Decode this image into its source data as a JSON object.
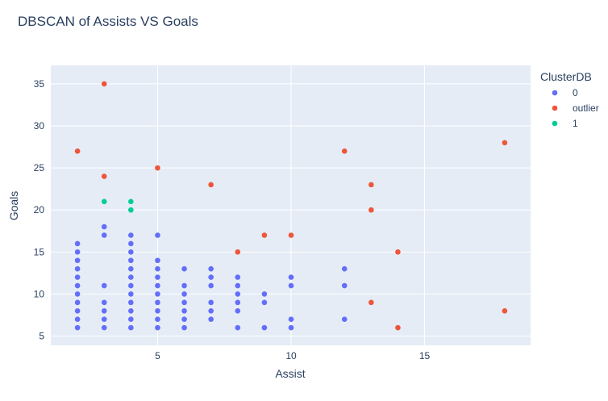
{
  "chart_data": {
    "type": "scatter",
    "title": "DBSCAN of Assists VS Goals",
    "xlabel": "Assist",
    "ylabel": "Goals",
    "xlim": [
      1.0,
      18.97
    ],
    "ylim": [
      3.9,
      37.2
    ],
    "xticks": [
      5,
      10,
      15
    ],
    "yticks": [
      5,
      10,
      15,
      20,
      25,
      30,
      35
    ],
    "grid": true,
    "legend": {
      "title": "ClusterDB",
      "position": "right"
    },
    "colors": {
      "0": "#636efa",
      "outlier": "#ef553b",
      "1": "#00cc96",
      "plot_bg": "#e5ecf6",
      "grid": "#ffffff",
      "text": "#2a3f5f"
    },
    "series": [
      {
        "name": "0",
        "color": "#636efa",
        "points": [
          [
            2,
            16
          ],
          [
            2,
            15
          ],
          [
            2,
            14
          ],
          [
            2,
            13
          ],
          [
            2,
            12
          ],
          [
            2,
            11
          ],
          [
            2,
            10
          ],
          [
            2,
            9
          ],
          [
            2,
            8
          ],
          [
            2,
            7
          ],
          [
            2,
            6
          ],
          [
            3,
            18
          ],
          [
            3,
            17
          ],
          [
            3,
            11
          ],
          [
            3,
            9
          ],
          [
            3,
            8
          ],
          [
            3,
            7
          ],
          [
            3,
            6
          ],
          [
            4,
            17
          ],
          [
            4,
            16
          ],
          [
            4,
            15
          ],
          [
            4,
            14
          ],
          [
            4,
            13
          ],
          [
            4,
            12
          ],
          [
            4,
            11
          ],
          [
            4,
            10
          ],
          [
            4,
            9
          ],
          [
            4,
            8
          ],
          [
            4,
            7
          ],
          [
            4,
            6
          ],
          [
            5,
            17
          ],
          [
            5,
            14
          ],
          [
            5,
            13
          ],
          [
            5,
            12
          ],
          [
            5,
            11
          ],
          [
            5,
            10
          ],
          [
            5,
            9
          ],
          [
            5,
            8
          ],
          [
            5,
            7
          ],
          [
            5,
            6
          ],
          [
            6,
            13
          ],
          [
            6,
            11
          ],
          [
            6,
            10
          ],
          [
            6,
            9
          ],
          [
            6,
            8
          ],
          [
            6,
            7
          ],
          [
            6,
            6
          ],
          [
            7,
            13
          ],
          [
            7,
            12
          ],
          [
            7,
            11
          ],
          [
            7,
            9
          ],
          [
            7,
            8
          ],
          [
            7,
            7
          ],
          [
            8,
            12
          ],
          [
            8,
            11
          ],
          [
            8,
            10
          ],
          [
            8,
            9
          ],
          [
            8,
            8
          ],
          [
            8,
            6
          ],
          [
            9,
            10
          ],
          [
            9,
            9
          ],
          [
            9,
            6
          ],
          [
            10,
            12
          ],
          [
            10,
            11
          ],
          [
            10,
            7
          ],
          [
            10,
            6
          ],
          [
            12,
            13
          ],
          [
            12,
            11
          ],
          [
            12,
            7
          ]
        ]
      },
      {
        "name": "outlier",
        "color": "#ef553b",
        "points": [
          [
            2,
            27
          ],
          [
            3,
            35
          ],
          [
            3,
            24
          ],
          [
            5,
            25
          ],
          [
            7,
            23
          ],
          [
            8,
            15
          ],
          [
            9,
            17
          ],
          [
            10,
            17
          ],
          [
            12,
            27
          ],
          [
            13,
            23
          ],
          [
            13,
            20
          ],
          [
            13,
            9
          ],
          [
            14,
            15
          ],
          [
            14,
            6
          ],
          [
            18,
            28
          ],
          [
            18,
            8
          ]
        ]
      },
      {
        "name": "1",
        "color": "#00cc96",
        "points": [
          [
            3,
            21
          ],
          [
            4,
            21
          ],
          [
            4,
            20
          ]
        ]
      }
    ]
  }
}
